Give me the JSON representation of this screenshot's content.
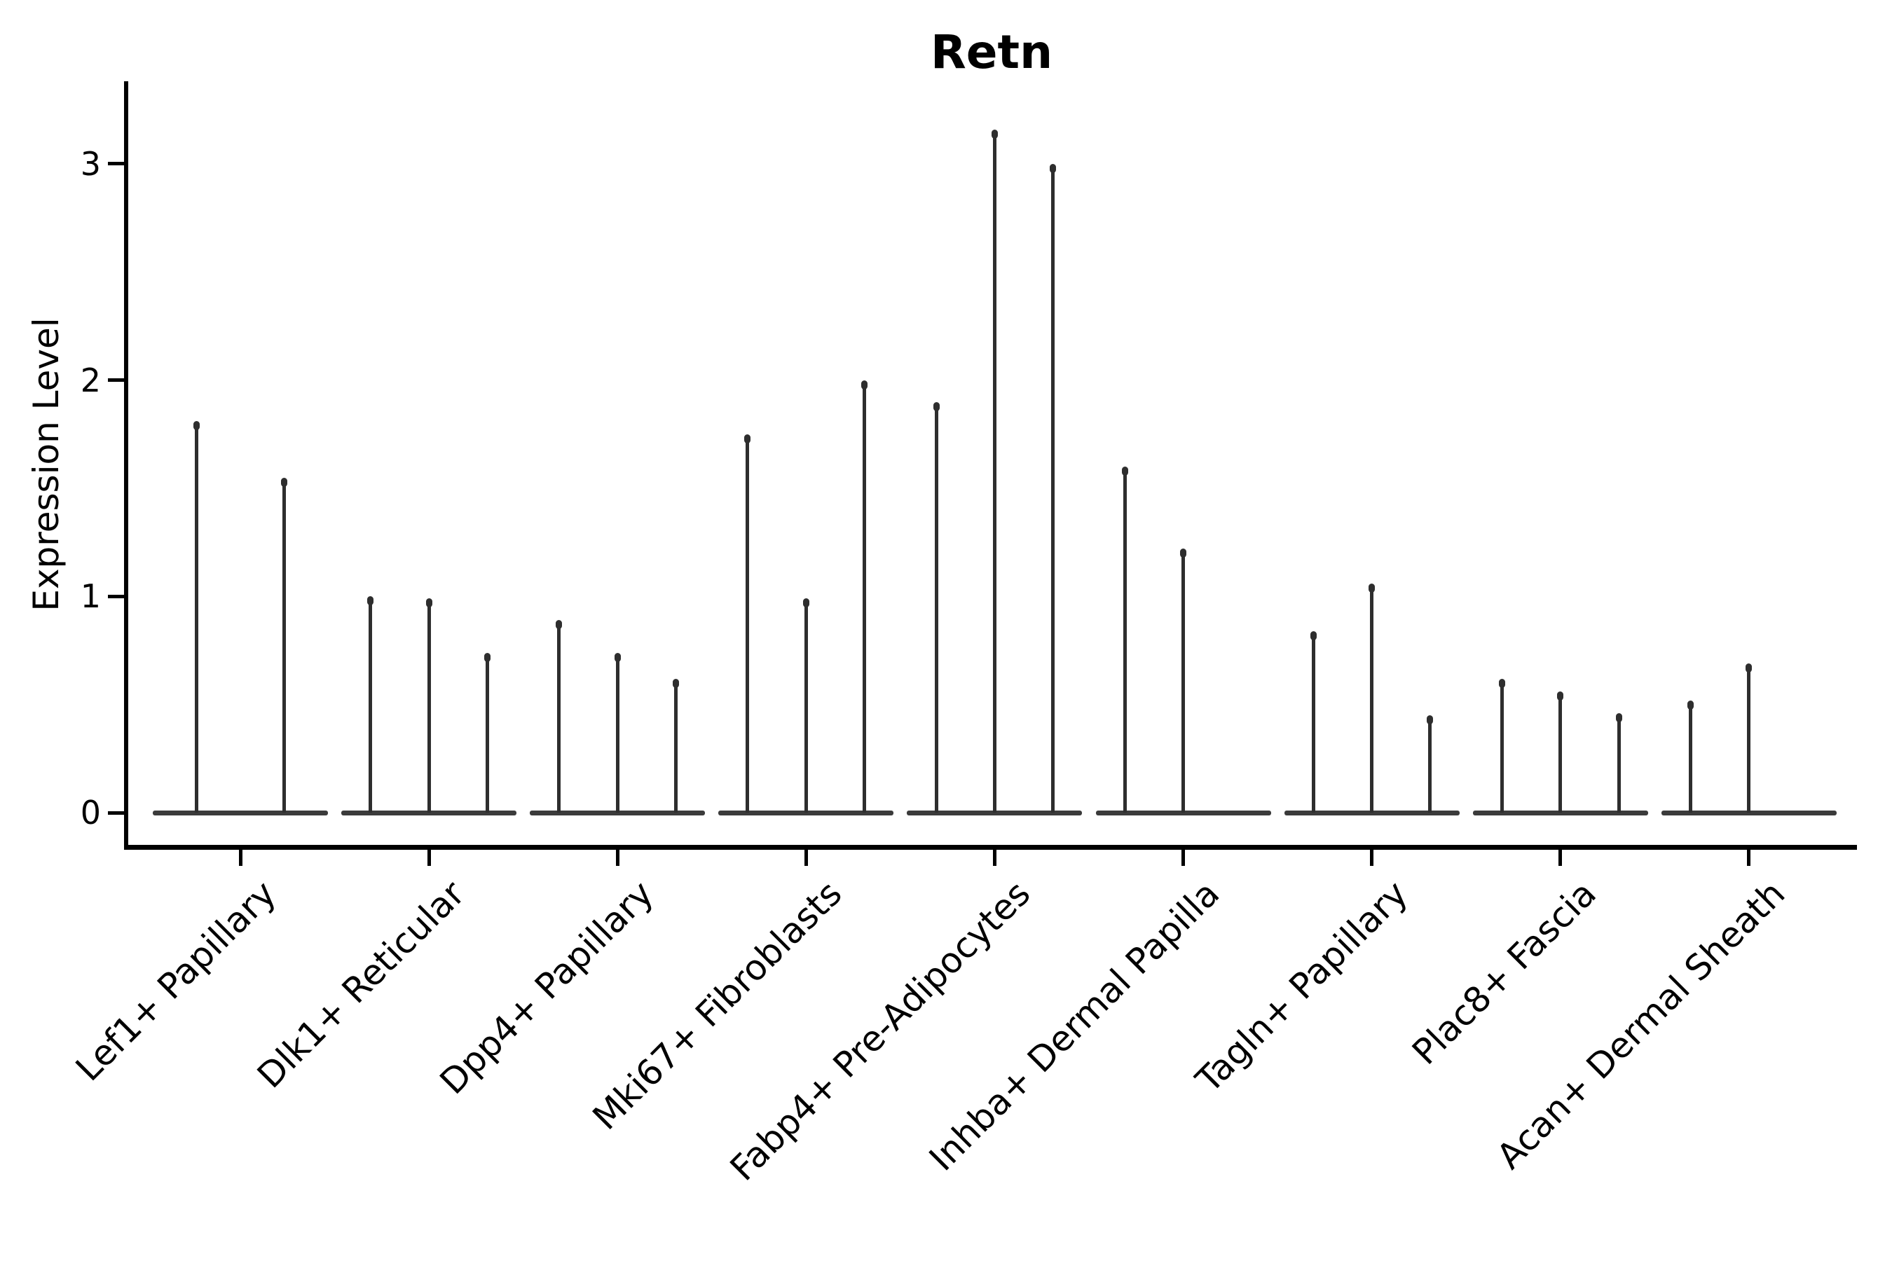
{
  "chart_data": {
    "type": "violin",
    "title": "Retn",
    "ylabel": "Expression Level",
    "xlabel": "",
    "yticks": [
      "0",
      "1",
      "2",
      "3"
    ],
    "ylim": [
      0,
      3.3
    ],
    "grid": false,
    "legend": "none",
    "note": "Seurat-style violin plot; violins collapsed to thin spikes (max expression) with flat base at 0",
    "categories": [
      {
        "label": "Lef1+ Papillary",
        "violin_maxima": [
          1.8,
          1.54
        ]
      },
      {
        "label": "Dlk1+ Reticular",
        "violin_maxima": [
          0.99,
          0.98,
          0.73
        ]
      },
      {
        "label": "Dpp4+ Papillary",
        "violin_maxima": [
          0.88,
          0.73,
          0.61
        ]
      },
      {
        "label": "Mki67+ Fibroblasts",
        "violin_maxima": [
          1.74,
          0.98,
          1.99
        ]
      },
      {
        "label": "Fabp4+ Pre-Adipocytes",
        "violin_maxima": [
          1.89,
          3.15,
          2.99
        ]
      },
      {
        "label": "Inhba+ Dermal Papilla",
        "violin_maxima": [
          1.59,
          1.21,
          0
        ]
      },
      {
        "label": "Tagln+ Papillary",
        "violin_maxima": [
          0.83,
          1.05,
          0.44
        ]
      },
      {
        "label": "Plac8+ Fascia",
        "violin_maxima": [
          0.61,
          0.55,
          0.45
        ]
      },
      {
        "label": "Acan+ Dermal Sheath",
        "violin_maxima": [
          0.51,
          0.68,
          0
        ]
      }
    ],
    "colors": {
      "violin_spike": "#2e2e2e",
      "violin_baseline": "#3b3b3b",
      "axis": "#000000",
      "text": "#000000",
      "background": "#ffffff"
    }
  }
}
